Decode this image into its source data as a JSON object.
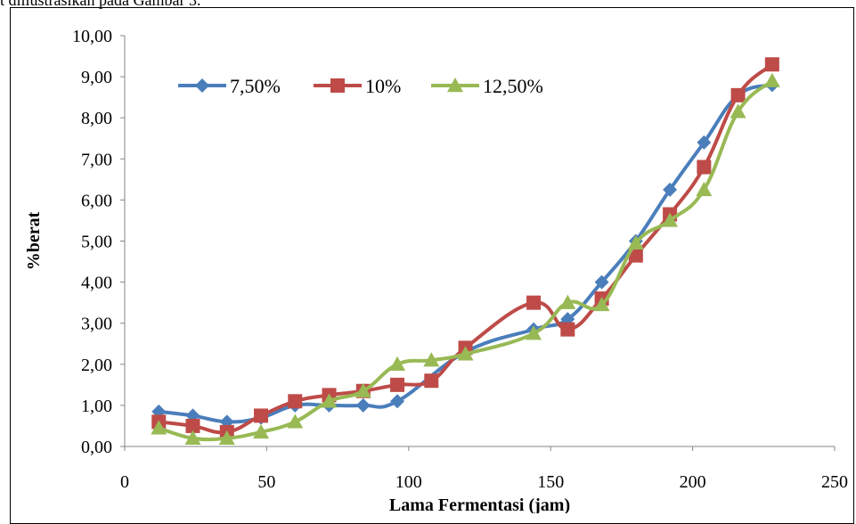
{
  "caption": "t diilustrasikan pada Gambar 3.",
  "chart_data": {
    "type": "line",
    "xlabel": "Lama Fermentasi (jam)",
    "ylabel": "%berat",
    "xlim": [
      0,
      250
    ],
    "ylim": [
      0,
      10
    ],
    "x_ticks": [
      "0",
      "50",
      "100",
      "150",
      "200",
      "250"
    ],
    "y_ticks": [
      "0,00",
      "1,00",
      "2,00",
      "3,00",
      "4,00",
      "5,00",
      "6,00",
      "7,00",
      "8,00",
      "9,00",
      "10,00"
    ],
    "grid": false,
    "legend_position": "top-left",
    "smooth": true,
    "series": [
      {
        "name": "7,50%",
        "color": "#4a7ebb",
        "marker": "diamond",
        "points": [
          [
            12,
            0.85
          ],
          [
            24,
            0.75
          ],
          [
            36,
            0.6
          ],
          [
            48,
            0.7
          ],
          [
            60,
            1.0
          ],
          [
            72,
            1.0
          ],
          [
            84,
            1.0
          ],
          [
            96,
            1.1
          ],
          [
            120,
            2.3
          ],
          [
            144,
            2.85
          ],
          [
            156,
            3.1
          ],
          [
            168,
            4.0
          ],
          [
            180,
            5.0
          ],
          [
            192,
            6.25
          ],
          [
            204,
            7.4
          ],
          [
            216,
            8.55
          ],
          [
            228,
            8.8
          ]
        ]
      },
      {
        "name": "10%",
        "color": "#be4b48",
        "marker": "square",
        "points": [
          [
            12,
            0.6
          ],
          [
            24,
            0.5
          ],
          [
            36,
            0.35
          ],
          [
            48,
            0.75
          ],
          [
            60,
            1.1
          ],
          [
            72,
            1.25
          ],
          [
            84,
            1.35
          ],
          [
            96,
            1.5
          ],
          [
            108,
            1.6
          ],
          [
            120,
            2.4
          ],
          [
            144,
            3.5
          ],
          [
            156,
            2.85
          ],
          [
            168,
            3.6
          ],
          [
            180,
            4.65
          ],
          [
            192,
            5.65
          ],
          [
            204,
            6.8
          ],
          [
            216,
            8.55
          ],
          [
            228,
            9.3
          ]
        ]
      },
      {
        "name": "12,50%",
        "color": "#98b954",
        "marker": "triangle",
        "points": [
          [
            12,
            0.45
          ],
          [
            24,
            0.2
          ],
          [
            36,
            0.2
          ],
          [
            48,
            0.35
          ],
          [
            60,
            0.6
          ],
          [
            72,
            1.1
          ],
          [
            84,
            1.35
          ],
          [
            96,
            2.0
          ],
          [
            108,
            2.1
          ],
          [
            120,
            2.25
          ],
          [
            144,
            2.75
          ],
          [
            156,
            3.5
          ],
          [
            168,
            3.45
          ],
          [
            180,
            4.95
          ],
          [
            192,
            5.5
          ],
          [
            204,
            6.25
          ],
          [
            216,
            8.15
          ],
          [
            228,
            8.9
          ]
        ]
      }
    ]
  }
}
